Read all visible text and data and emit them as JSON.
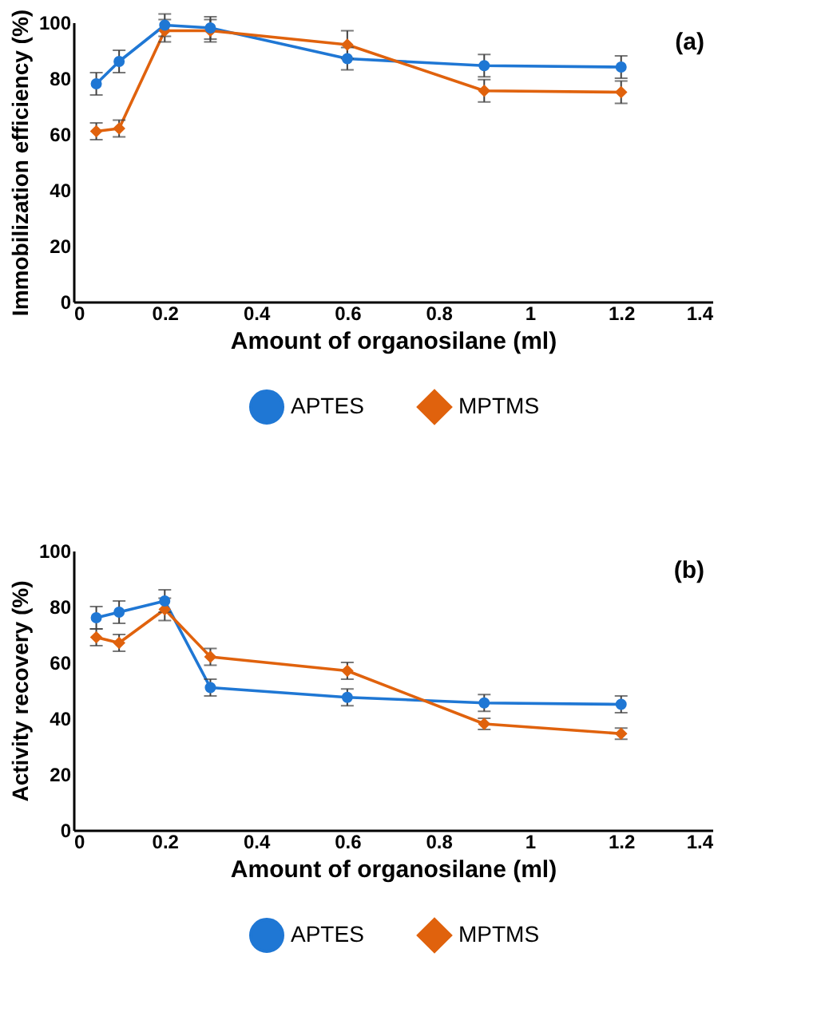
{
  "chart_data": [
    {
      "type": "line",
      "xlabel": "Amount of organosilane (ml)",
      "ylabel": "Immobilization efficiency (%)",
      "annotations": [
        "(a)"
      ],
      "x": [
        0.05,
        0.1,
        0.2,
        0.3,
        0.6,
        0.9,
        1.2
      ],
      "xlim": [
        0,
        1.4
      ],
      "xticks": [
        0,
        0.2,
        0.4,
        0.6,
        0.8,
        1,
        1.2,
        1.4
      ],
      "ylim": [
        0,
        100
      ],
      "yticks": [
        0,
        20,
        40,
        60,
        80,
        100
      ],
      "grid": false,
      "legend": "bottom",
      "series": [
        {
          "name": "APTES",
          "color": "#1f77d4",
          "marker": "circle",
          "values": [
            78,
            86,
            99,
            98,
            87,
            84.5,
            84
          ],
          "errors": [
            4,
            4,
            4,
            4,
            4,
            4,
            4
          ]
        },
        {
          "name": "MPTMS",
          "color": "#e0620d",
          "marker": "diamond",
          "values": [
            61,
            62,
            97,
            97,
            92,
            75.5,
            75
          ],
          "errors": [
            3,
            3,
            4,
            4,
            5,
            4,
            4
          ]
        }
      ]
    },
    {
      "type": "line",
      "xlabel": "Amount of organosilane  (ml)",
      "ylabel": "Activity recovery (%)",
      "annotations": [
        "(b)"
      ],
      "x": [
        0.05,
        0.1,
        0.2,
        0.3,
        0.6,
        0.9,
        1.2
      ],
      "xlim": [
        0,
        1.4
      ],
      "xticks": [
        0,
        0.2,
        0.4,
        0.6,
        0.8,
        1,
        1.2,
        1.4
      ],
      "ylim": [
        0,
        100
      ],
      "yticks": [
        0,
        20,
        40,
        60,
        80,
        100
      ],
      "grid": false,
      "legend": "bottom",
      "series": [
        {
          "name": "APTES",
          "color": "#1f77d4",
          "marker": "circle",
          "values": [
            76,
            78,
            82,
            51,
            47.5,
            45.5,
            45
          ],
          "errors": [
            4,
            4,
            4,
            3,
            3,
            3,
            3
          ]
        },
        {
          "name": "MPTMS",
          "color": "#e0620d",
          "marker": "diamond",
          "values": [
            69,
            67,
            79,
            62,
            57,
            38,
            34.5
          ],
          "errors": [
            3,
            3,
            4,
            3,
            3,
            2,
            2
          ]
        }
      ]
    }
  ]
}
